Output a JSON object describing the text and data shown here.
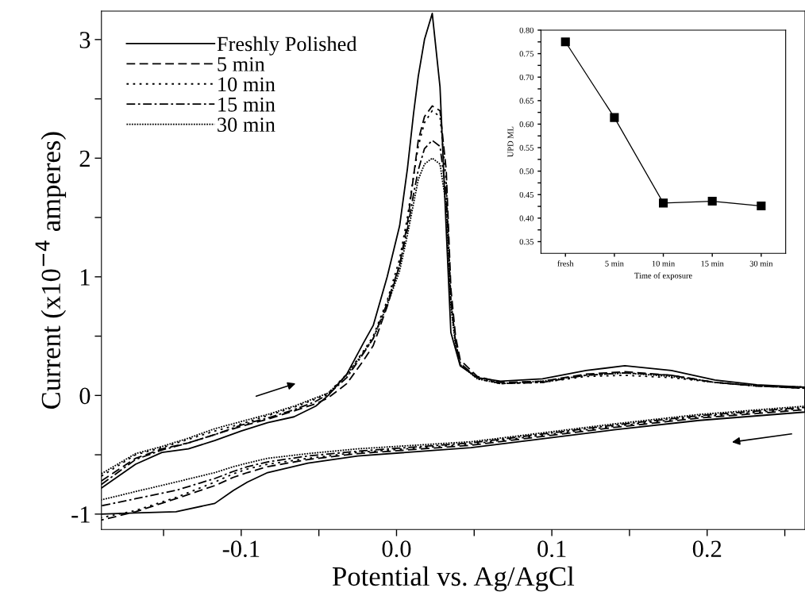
{
  "chart_data": [
    {
      "type": "line",
      "xlabel": "Potential vs. Ag/AgCl",
      "ylabel": "Current (x10$^{−4}$ amperes)",
      "legend": "top left",
      "xlim": [
        -0.19,
        0.263
      ],
      "ylim": [
        -1.13,
        3.24
      ],
      "xticks": [
        {
          "value": -0.15,
          "label": null
        },
        {
          "value": -0.1,
          "label": "-0.1"
        },
        {
          "value": -0.05,
          "label": null
        },
        {
          "value": 0.0,
          "label": "0.0"
        },
        {
          "value": 0.05,
          "label": null
        },
        {
          "value": 0.1,
          "label": "0.1"
        },
        {
          "value": 0.15,
          "label": null
        },
        {
          "value": 0.2,
          "label": "0.2"
        },
        {
          "value": 0.25,
          "label": null
        }
      ],
      "yticks": [
        {
          "value": -1,
          "label": "-1"
        },
        {
          "value": -0.5,
          "label": null
        },
        0,
        {
          "value": 0.5,
          "label": null
        },
        1,
        {
          "value": 1.5,
          "label": null
        },
        2,
        {
          "value": 2.5,
          "label": null
        },
        3
      ],
      "series": [
        {
          "name": "Freshly Polished",
          "color": "#000000",
          "line_style": "solid",
          "x": [
            -0.19,
            -0.168,
            -0.151,
            -0.134,
            -0.117,
            -0.1,
            -0.083,
            -0.066,
            -0.052,
            -0.044,
            -0.032,
            -0.021,
            -0.015,
            -0.006,
            0.002,
            0.007,
            0.011,
            0.014,
            0.018,
            0.023,
            0.028,
            0.032,
            0.035,
            0.038,
            0.041,
            0.052,
            0.067,
            0.094,
            0.122,
            0.147,
            0.177,
            0.205,
            0.232,
            0.263,
            0.263,
            0.195,
            0.14,
            0.085,
            0.048,
            -0.025,
            -0.057,
            -0.083,
            -0.096,
            -0.105,
            -0.117,
            -0.142,
            -0.168,
            -0.19
          ],
          "values": [
            -0.78,
            -0.58,
            -0.48,
            -0.45,
            -0.38,
            -0.3,
            -0.23,
            -0.18,
            -0.09,
            0.0,
            0.18,
            0.45,
            0.59,
            1.0,
            1.43,
            1.91,
            2.38,
            2.69,
            3.0,
            3.22,
            2.6,
            1.4,
            0.53,
            0.39,
            0.25,
            0.15,
            0.12,
            0.14,
            0.21,
            0.25,
            0.21,
            0.13,
            0.09,
            0.07,
            -0.14,
            -0.21,
            -0.29,
            -0.38,
            -0.44,
            -0.51,
            -0.57,
            -0.65,
            -0.73,
            -0.8,
            -0.91,
            -0.98,
            -0.99,
            -1.0
          ]
        },
        {
          "name": "5 min",
          "color": "#000000",
          "line_style": "dashed",
          "x": [
            -0.19,
            -0.168,
            -0.151,
            -0.134,
            -0.117,
            -0.1,
            -0.083,
            -0.066,
            -0.052,
            -0.044,
            -0.032,
            -0.021,
            -0.015,
            -0.006,
            0.002,
            0.007,
            0.011,
            0.014,
            0.018,
            0.023,
            0.028,
            0.032,
            0.035,
            0.038,
            0.041,
            0.052,
            0.067,
            0.094,
            0.122,
            0.147,
            0.177,
            0.205,
            0.232,
            0.263,
            0.263,
            0.195,
            0.14,
            0.085,
            0.048,
            -0.025,
            -0.057,
            -0.083,
            -0.096,
            -0.105,
            -0.117,
            -0.142,
            -0.168,
            -0.19
          ],
          "values": [
            -0.72,
            -0.53,
            -0.45,
            -0.4,
            -0.33,
            -0.26,
            -0.2,
            -0.13,
            -0.07,
            -0.02,
            0.1,
            0.3,
            0.42,
            0.75,
            1.1,
            1.45,
            1.85,
            2.15,
            2.35,
            2.44,
            2.4,
            1.9,
            0.9,
            0.5,
            0.3,
            0.16,
            0.11,
            0.12,
            0.18,
            0.2,
            0.17,
            0.11,
            0.08,
            0.06,
            -0.12,
            -0.19,
            -0.27,
            -0.36,
            -0.42,
            -0.49,
            -0.54,
            -0.6,
            -0.65,
            -0.69,
            -0.76,
            -0.87,
            -0.98,
            -1.05
          ]
        },
        {
          "name": "10 min",
          "color": "#000000",
          "line_style": "dotted",
          "x": [
            -0.19,
            -0.168,
            -0.151,
            -0.134,
            -0.117,
            -0.1,
            -0.083,
            -0.066,
            -0.052,
            -0.044,
            -0.032,
            -0.021,
            -0.015,
            -0.006,
            0.002,
            0.007,
            0.011,
            0.014,
            0.018,
            0.023,
            0.028,
            0.032,
            0.035,
            0.038,
            0.041,
            0.052,
            0.067,
            0.094,
            0.122,
            0.147,
            0.177,
            0.205,
            0.232,
            0.263,
            0.263,
            0.195,
            0.14,
            0.085,
            0.048,
            -0.025,
            -0.057,
            -0.083,
            -0.096,
            -0.105,
            -0.117,
            -0.142,
            -0.168,
            -0.19
          ],
          "values": [
            -0.68,
            -0.5,
            -0.44,
            -0.37,
            -0.3,
            -0.24,
            -0.17,
            -0.1,
            -0.03,
            0.02,
            0.18,
            0.38,
            0.5,
            0.8,
            1.15,
            1.5,
            1.85,
            2.1,
            2.3,
            2.4,
            2.35,
            1.8,
            0.8,
            0.45,
            0.27,
            0.14,
            0.1,
            0.11,
            0.16,
            0.17,
            0.15,
            0.11,
            0.08,
            0.07,
            -0.11,
            -0.18,
            -0.26,
            -0.35,
            -0.41,
            -0.48,
            -0.53,
            -0.58,
            -0.62,
            -0.66,
            -0.73,
            -0.86,
            -0.97,
            -1.03
          ]
        },
        {
          "name": "15 min",
          "color": "#000000",
          "line_style": "dashdot",
          "x": [
            -0.19,
            -0.168,
            -0.151,
            -0.134,
            -0.117,
            -0.1,
            -0.083,
            -0.066,
            -0.052,
            -0.044,
            -0.032,
            -0.021,
            -0.015,
            -0.006,
            0.002,
            0.007,
            0.011,
            0.014,
            0.018,
            0.023,
            0.028,
            0.032,
            0.035,
            0.038,
            0.041,
            0.052,
            0.067,
            0.094,
            0.122,
            0.147,
            0.177,
            0.205,
            0.232,
            0.263,
            0.263,
            0.195,
            0.14,
            0.085,
            0.048,
            -0.025,
            -0.057,
            -0.083,
            -0.096,
            -0.105,
            -0.117,
            -0.142,
            -0.168,
            -0.19
          ],
          "values": [
            -0.75,
            -0.54,
            -0.46,
            -0.4,
            -0.33,
            -0.25,
            -0.19,
            -0.12,
            -0.05,
            0.01,
            0.15,
            0.36,
            0.48,
            0.78,
            1.1,
            1.4,
            1.7,
            1.9,
            2.08,
            2.15,
            2.1,
            1.7,
            0.8,
            0.45,
            0.27,
            0.15,
            0.1,
            0.11,
            0.17,
            0.19,
            0.17,
            0.11,
            0.08,
            0.06,
            -0.1,
            -0.17,
            -0.25,
            -0.34,
            -0.4,
            -0.47,
            -0.51,
            -0.56,
            -0.6,
            -0.64,
            -0.7,
            -0.8,
            -0.87,
            -0.93
          ]
        },
        {
          "name": "30 min",
          "color": "#000000",
          "line_style": "densely dotted",
          "x": [
            -0.19,
            -0.168,
            -0.151,
            -0.134,
            -0.117,
            -0.1,
            -0.083,
            -0.066,
            -0.052,
            -0.044,
            -0.032,
            -0.021,
            -0.015,
            -0.006,
            0.002,
            0.007,
            0.011,
            0.014,
            0.018,
            0.023,
            0.028,
            0.032,
            0.035,
            0.038,
            0.041,
            0.052,
            0.067,
            0.094,
            0.122,
            0.147,
            0.177,
            0.205,
            0.232,
            0.263,
            0.263,
            0.195,
            0.14,
            0.085,
            0.048,
            -0.025,
            -0.057,
            -0.083,
            -0.096,
            -0.105,
            -0.117,
            -0.142,
            -0.168,
            -0.19
          ],
          "values": [
            -0.66,
            -0.49,
            -0.43,
            -0.36,
            -0.28,
            -0.22,
            -0.16,
            -0.09,
            -0.02,
            0.02,
            0.17,
            0.37,
            0.48,
            0.76,
            1.05,
            1.35,
            1.62,
            1.82,
            1.95,
            2.0,
            1.95,
            1.6,
            0.75,
            0.42,
            0.26,
            0.14,
            0.1,
            0.12,
            0.17,
            0.19,
            0.16,
            0.11,
            0.08,
            0.07,
            -0.09,
            -0.16,
            -0.24,
            -0.33,
            -0.39,
            -0.45,
            -0.49,
            -0.53,
            -0.57,
            -0.6,
            -0.65,
            -0.73,
            -0.81,
            -0.88
          ]
        }
      ]
    },
    {
      "type": "line",
      "xlabel": "Time of exposure",
      "ylabel": "UPD ML",
      "marker": "square",
      "categories": [
        "fresh",
        "5 min",
        "10 min",
        "15 min",
        "30 min"
      ],
      "ylim": [
        0.325,
        0.8
      ],
      "yticks": [
        {
          "value": 0.35,
          "label": "0.35"
        },
        {
          "value": 0.375,
          "label": null
        },
        {
          "value": 0.4,
          "label": "0.40"
        },
        {
          "value": 0.425,
          "label": null
        },
        {
          "value": 0.45,
          "label": "0.45"
        },
        {
          "value": 0.475,
          "label": null
        },
        {
          "value": 0.5,
          "label": "0.50"
        },
        {
          "value": 0.525,
          "label": null
        },
        {
          "value": 0.55,
          "label": "0.55"
        },
        {
          "value": 0.575,
          "label": null
        },
        {
          "value": 0.6,
          "label": "0.60"
        },
        {
          "value": 0.625,
          "label": null
        },
        {
          "value": 0.65,
          "label": "0.65"
        },
        {
          "value": 0.675,
          "label": null
        },
        {
          "value": 0.7,
          "label": "0.70"
        },
        {
          "value": 0.725,
          "label": null
        },
        {
          "value": 0.75,
          "label": "0.75"
        },
        {
          "value": 0.775,
          "label": null
        },
        {
          "value": 0.8,
          "label": "0.80"
        }
      ],
      "color": "#000000",
      "values": [
        0.775,
        0.614,
        0.432,
        0.436,
        0.426
      ]
    }
  ]
}
